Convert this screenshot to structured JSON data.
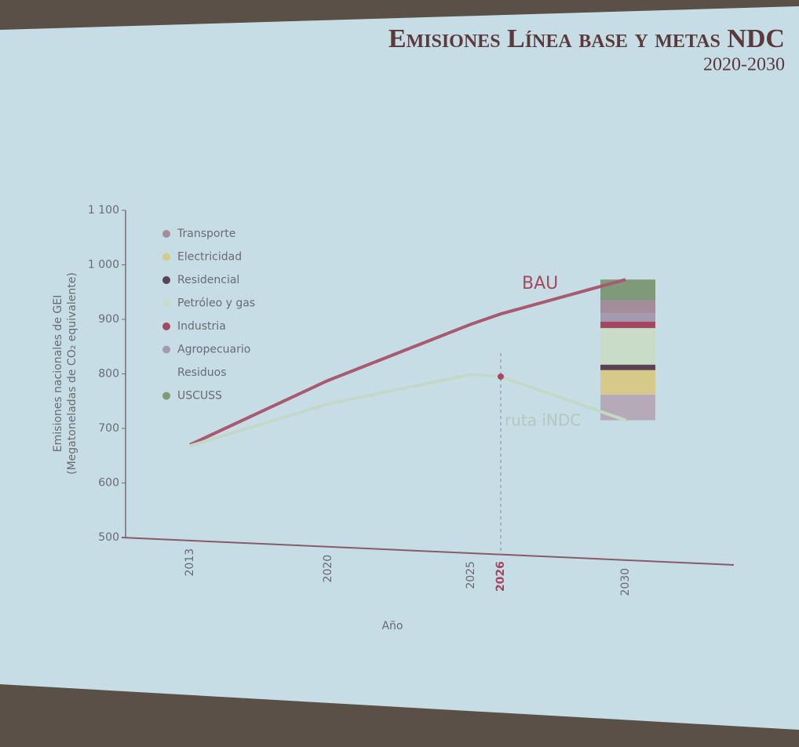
{
  "chart_data": {
    "type": "line",
    "title": "Emisiones Línea base y metas NDC",
    "subtitle": "2020-2030",
    "y_label": [
      "Emisiones nacionales de GEI",
      "(Megatoneladas de CO₂ equivalente)"
    ],
    "x_label": "Año",
    "categories": [
      "2013",
      "2020",
      "2025",
      "2026",
      "2030"
    ],
    "highlight_category": 3,
    "series": [
      {
        "name": "BAU",
        "color": "#a85a6e",
        "values": [
          670,
          788,
          891,
          910,
          973
        ]
      },
      {
        "name": "ruta iNDC",
        "color": "#c4d8c8",
        "values": [
          668,
          745,
          799,
          795,
          715
        ]
      }
    ],
    "ylim": [
      500,
      1100
    ],
    "yticks": [
      500,
      600,
      700,
      800,
      900,
      {
        "value": 1000,
        "label": "1 000"
      },
      {
        "value": 1100,
        "label": "1 100"
      }
    ],
    "legend": [
      {
        "name": "Transporte",
        "color": "#a58c9a",
        "value": 24
      },
      {
        "name": "Electricidad",
        "color": "#d6c98a",
        "value": 45
      },
      {
        "name": "Residencial",
        "color": "#5a4250",
        "value": 10
      },
      {
        "name": "Petróleo y gas",
        "color": "#c9dcc8",
        "value": 67
      },
      {
        "name": "Industria",
        "color": "#a5475f",
        "value": 12
      },
      {
        "name": "Agropecuario",
        "color": "#a49ab0",
        "value": 15
      },
      {
        "name": "Residuos",
        "color": "#b4aab8",
        "value": 47
      },
      {
        "name": "USCUSS",
        "color": "#7f9a78",
        "value": 38
      }
    ]
  }
}
